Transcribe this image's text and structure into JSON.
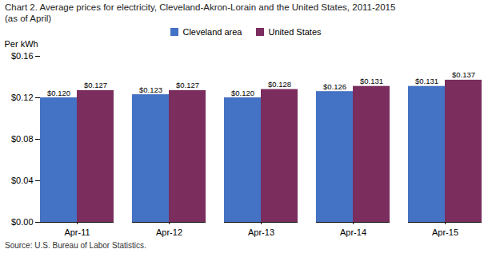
{
  "chart_data": {
    "type": "bar",
    "title": "Chart 2. Average prices for electricity, Cleveland-Akron-Lorain and the United States, 2011-2015",
    "subtitle": "(as of April)",
    "y_label": "Per kWh",
    "source": "Source: U.S. Bureau of Labor Statistics.",
    "categories": [
      "Apr-11",
      "Apr-12",
      "Apr-13",
      "Apr-14",
      "Apr-15"
    ],
    "series": [
      {
        "name": "Cleveland area",
        "color": "#4472C4",
        "values": [
          0.12,
          0.123,
          0.12,
          0.126,
          0.131
        ],
        "value_labels": [
          "$0.120",
          "$0.123",
          "$0.120",
          "$0.126",
          "$0.131"
        ]
      },
      {
        "name": "United States",
        "color": "#7B2D5E",
        "values": [
          0.127,
          0.127,
          0.128,
          0.131,
          0.137
        ],
        "value_labels": [
          "$0.127",
          "$0.127",
          "$0.128",
          "$0.131",
          "$0.137"
        ]
      }
    ],
    "ylim": [
      0,
      0.16
    ],
    "yticks": [
      {
        "value": 0.0,
        "label": "$0.00"
      },
      {
        "value": 0.04,
        "label": "$0.04"
      },
      {
        "value": 0.08,
        "label": "$0.08"
      },
      {
        "value": 0.12,
        "label": "$0.12"
      },
      {
        "value": 0.16,
        "label": "$0.16"
      }
    ],
    "grid": false,
    "legend": "top",
    "data_labels": true
  }
}
